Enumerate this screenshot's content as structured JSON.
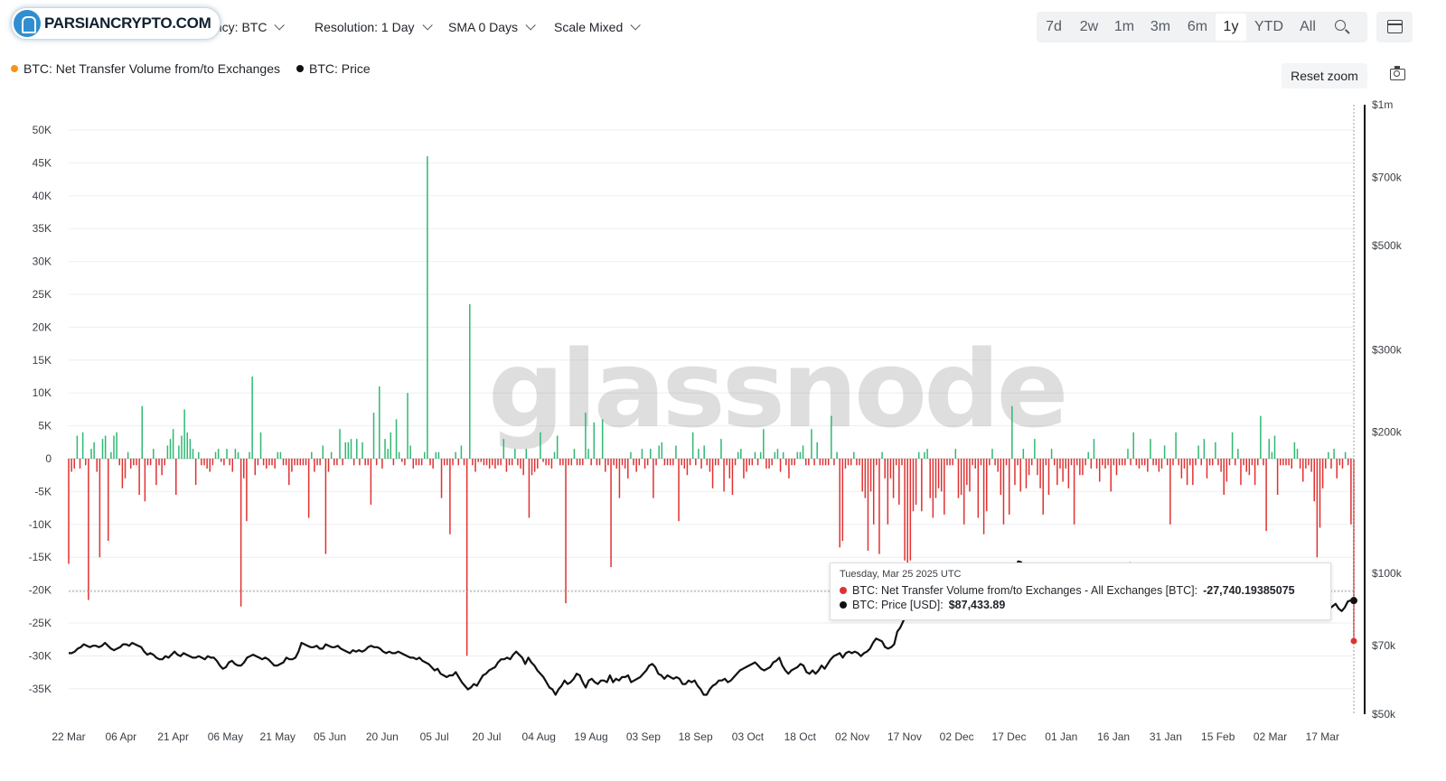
{
  "logo": {
    "text": "PARSIANCRYPTO.COM"
  },
  "toolbar": {
    "currency": "urrency: BTC",
    "resolution": "Resolution: 1 Day",
    "sma": "SMA 0 Days",
    "scale": "Scale Mixed"
  },
  "ranges": [
    "7d",
    "2w",
    "1m",
    "3m",
    "6m",
    "1y",
    "YTD",
    "All"
  ],
  "active_range": "1y",
  "legend": [
    {
      "label": "BTC: Net Transfer Volume from/to Exchanges",
      "color": "#f7931a"
    },
    {
      "label": "BTC: Price",
      "color": "#111111"
    }
  ],
  "reset_zoom": "Reset zoom",
  "watermark": "glassnode",
  "tooltip": {
    "date": "Tuesday, Mar 25 2025 UTC",
    "row1_label": "BTC: Net Transfer Volume from/to Exchanges - All Exchanges [BTC]:",
    "row1_value": "-27,740.19385075",
    "row1_color": "#e03131",
    "row2_label": "BTC: Price [USD]:",
    "row2_value": "$87,433.89",
    "row2_color": "#111111"
  },
  "colors": {
    "positive": "#2fb872",
    "negative": "#e03131",
    "price": "#111111"
  },
  "chart_data": {
    "type": "bar",
    "x_ticks": [
      "22 Mar",
      "06 Apr",
      "21 Apr",
      "06 May",
      "21 May",
      "05 Jun",
      "20 Jun",
      "05 Jul",
      "20 Jul",
      "04 Aug",
      "19 Aug",
      "03 Sep",
      "18 Sep",
      "03 Oct",
      "18 Oct",
      "02 Nov",
      "17 Nov",
      "02 Dec",
      "17 Dec",
      "01 Jan",
      "16 Jan",
      "31 Jan",
      "15 Feb",
      "02 Mar",
      "17 Mar"
    ],
    "y_left_ticks": [
      "50K",
      "45K",
      "40K",
      "35K",
      "30K",
      "25K",
      "20K",
      "15K",
      "10K",
      "5K",
      "0",
      "-5K",
      "-10K",
      "-15K",
      "-20K",
      "-25K",
      "-30K",
      "-35K"
    ],
    "y_left_values": [
      50000,
      45000,
      40000,
      35000,
      30000,
      25000,
      20000,
      15000,
      10000,
      5000,
      0,
      -5000,
      -10000,
      -15000,
      -20000,
      -25000,
      -30000,
      -35000
    ],
    "y_left_range": [
      -38500,
      50000
    ],
    "y_right_ticks": [
      "$1m",
      "$700k",
      "$500k",
      "$300k",
      "$200k",
      "$100k",
      "$70k",
      "$50k"
    ],
    "y_right_values": [
      1000000,
      700000,
      500000,
      300000,
      200000,
      100000,
      70000,
      50000
    ],
    "y_right_scale": "log",
    "y_right_range": [
      50000,
      1000000
    ],
    "grid": true,
    "legend_position": "top-left",
    "series": [
      {
        "name": "BTC: Net Transfer Volume from/to Exchanges",
        "type": "bar",
        "x_range": [
          "22 Mar",
          "25 Mar"
        ],
        "values": [
          -16000,
          -2000,
          -1500,
          3500,
          -1500,
          4000,
          -1000,
          -21500,
          1500,
          2500,
          -2000,
          -15000,
          3000,
          3500,
          -12500,
          1000,
          3500,
          4000,
          -1000,
          -4500,
          -3000,
          1000,
          -1500,
          -1000,
          -1000,
          -5500,
          8000,
          -6500,
          -1000,
          -1000,
          1500,
          -4000,
          -1000,
          -2500,
          -1000,
          2000,
          3000,
          4500,
          -5500,
          2000,
          3500,
          7500,
          4000,
          3000,
          1500,
          -4000,
          1000,
          -1000,
          -1000,
          -1500,
          -2000,
          -1000,
          1000,
          1500,
          -500,
          -1000,
          1500,
          -1000,
          -2000,
          1500,
          1000,
          -22500,
          -3000,
          -9500,
          1000,
          12500,
          -2500,
          -1000,
          4000,
          -1000,
          -1500,
          -1000,
          -1000,
          -1500,
          1000,
          1000,
          -1000,
          -1000,
          -4000,
          -2000,
          -1000,
          -1000,
          -1000,
          -1000,
          -1000,
          -9000,
          1000,
          -2000,
          -1000,
          -1000,
          2000,
          -14500,
          -2000,
          1000,
          -1000,
          -1000,
          4500,
          -1000,
          2500,
          2500,
          3000,
          -1000,
          3000,
          -1000,
          2500,
          -1000,
          -1000,
          -7000,
          7000,
          -1000,
          11000,
          -1500,
          3000,
          1500,
          4000,
          -1000,
          6000,
          1000,
          -500,
          -1000,
          10000,
          2000,
          -1500,
          -1000,
          -1000,
          -1000,
          1000,
          46000,
          -1000,
          -1500,
          1000,
          1000,
          -6000,
          -1000,
          -1000,
          -11500,
          -1000,
          1000,
          -1000,
          2000,
          -1000,
          -30000,
          23500,
          -1000,
          -2000,
          -500,
          -500,
          -1000,
          -1000,
          -1500,
          -1000,
          -1500,
          -1000,
          -1000,
          3000,
          -2000,
          -1000,
          -1000,
          1500,
          -1000,
          -1500,
          -2500,
          1500,
          -9000,
          -2500,
          -2000,
          -1500,
          4000,
          -500,
          -1000,
          -1000,
          -1500,
          1000,
          3500,
          -1000,
          -1000,
          -22000,
          -1000,
          -1000,
          1500,
          -1000,
          -1000,
          -1000,
          7000,
          1500,
          -1000,
          5500,
          -1000,
          -1000,
          6000,
          -2000,
          -1000,
          -16500,
          -1000,
          -1500,
          -6000,
          -1000,
          -1500,
          -3000,
          1000,
          -1000,
          -2000,
          -1000,
          1500,
          -1500,
          -1000,
          1500,
          -6000,
          -1000,
          2000,
          2500,
          -1000,
          -1000,
          -1000,
          -1000,
          2000,
          -9500,
          -1000,
          -1500,
          -2500,
          -1000,
          4000,
          -1000,
          1500,
          -1500,
          2000,
          -1000,
          -2000,
          -4500,
          -1000,
          -1000,
          3000,
          -5000,
          -1000,
          -3000,
          -5500,
          -1000,
          1000,
          1500,
          -3000,
          -2000,
          -1000,
          -1000,
          1000,
          -1000,
          1000,
          4500,
          -1500,
          -1500,
          -1000,
          1000,
          1500,
          -2000,
          1000,
          -1000,
          -3000,
          -1000,
          -1000,
          1000,
          1000,
          2000,
          -1000,
          -1000,
          4500,
          -1000,
          2500,
          -1000,
          -1000,
          -1000,
          -1000,
          6500,
          -1000,
          1000,
          -13500,
          -12500,
          -1500,
          -1000,
          -1000,
          1000,
          -1000,
          -1000,
          -5000,
          -6000,
          -14000,
          -5000,
          -10000,
          -1000,
          -14500,
          1000,
          -3000,
          -10000,
          -3000,
          -6000,
          -1000,
          -7000,
          -1000,
          -15500,
          -16000,
          -15500,
          -8000,
          -7000,
          1000,
          -8000,
          1000,
          1500,
          -6000,
          -9000,
          -6000,
          -4500,
          -5000,
          -8500,
          -1000,
          -1000,
          -1000,
          1500,
          -6000,
          -5500,
          -10000,
          -4000,
          -5000,
          -1000,
          -1500,
          -9000,
          -1000,
          -11500,
          -8000,
          -1000,
          1500,
          -1000,
          -2000,
          -5500,
          -10000,
          -1000,
          -8500,
          8000,
          -4000,
          -1000,
          -5000,
          1500,
          -4500,
          -2500,
          -1000,
          3000,
          -2500,
          -4500,
          -8500,
          -1000,
          -5500,
          1500,
          -1000,
          -4000,
          -1500,
          -3500,
          -1500,
          -4500,
          -1000,
          -10000,
          -1000,
          -2500,
          -2500,
          -1000,
          1000,
          -1500,
          3000,
          -1500,
          -3500,
          -1000,
          -1500,
          -1000,
          -5000,
          -1000,
          -2500,
          -1000,
          -1000,
          -1000,
          1500,
          -1000,
          4000,
          -1000,
          -1500,
          -1000,
          -1000,
          -2000,
          3000,
          -1000,
          -1000,
          -2000,
          -1500,
          2000,
          -1000,
          -10000,
          -1000,
          4000,
          -1000,
          -3000,
          -1500,
          -4000,
          -1000,
          -4000,
          -1000,
          2000,
          -1000,
          3000,
          -3000,
          -1000,
          -1000,
          2500,
          -1000,
          -2000,
          -5500,
          -3500,
          -1000,
          4000,
          -1000,
          1500,
          -4000,
          -1000,
          -2000,
          -2500,
          -1000,
          -4000,
          -1000,
          6500,
          -1000,
          -11000,
          3000,
          1000,
          3500,
          -5500,
          -1000,
          -1000,
          -1000,
          -1000,
          -1500,
          2500,
          1500,
          -1500,
          -3500,
          -1500,
          -1000,
          -2000,
          -6500,
          -15000,
          -10500,
          -4500,
          -1500,
          1000,
          -1500,
          1500,
          -3000,
          -1000,
          -1500,
          1000,
          -1000,
          -10000,
          -27740
        ]
      },
      {
        "name": "BTC: Price",
        "type": "line",
        "x_range": [
          "22 Mar",
          "25 Mar"
        ],
        "values": [
          67500,
          67500,
          68000,
          69000,
          69500,
          70500,
          70000,
          69500,
          70000,
          70000,
          69500,
          70000,
          71000,
          70000,
          69000,
          68500,
          69000,
          69500,
          70500,
          70500,
          70000,
          71000,
          70500,
          70000,
          69500,
          68000,
          67000,
          67500,
          67000,
          66000,
          65500,
          65500,
          66500,
          66000,
          67000,
          68000,
          67000,
          66500,
          67500,
          67000,
          66500,
          66000,
          66000,
          66500,
          66000,
          65500,
          66500,
          66000,
          66000,
          65000,
          63500,
          62500,
          63000,
          64500,
          65000,
          64000,
          63500,
          63500,
          64500,
          66000,
          66500,
          67000,
          66500,
          66000,
          65500,
          66000,
          65500,
          64500,
          63500,
          63500,
          64000,
          64500,
          66000,
          65500,
          65500,
          66000,
          68000,
          71000,
          70500,
          70000,
          69500,
          69500,
          70000,
          69000,
          69000,
          70500,
          70000,
          69500,
          69500,
          70000,
          69000,
          68500,
          68000,
          67500,
          68500,
          68000,
          68500,
          68000,
          68500,
          69500,
          70000,
          69500,
          69500,
          69000,
          68000,
          67500,
          68000,
          67500,
          67500,
          68000,
          67500,
          67000,
          66500,
          66000,
          66000,
          65500,
          66000,
          65000,
          64500,
          64000,
          63000,
          62000,
          62500,
          61000,
          60500,
          60000,
          60500,
          60500,
          61500,
          60000,
          58500,
          57500,
          56500,
          57000,
          58000,
          57500,
          59000,
          60500,
          61000,
          62000,
          62500,
          63000,
          64500,
          65500,
          65500,
          66000,
          65500,
          67000,
          68000,
          67000,
          66000,
          64000,
          66000,
          64500,
          63500,
          62000,
          61000,
          60000,
          58500,
          57000,
          56500,
          55000,
          56500,
          57500,
          59000,
          58000,
          58500,
          59500,
          61000,
          60500,
          58500,
          57000,
          59000,
          59500,
          58500,
          58000,
          59000,
          59000,
          58500,
          60500,
          58500,
          59500,
          59000,
          60000,
          60000,
          60500,
          58500,
          59000,
          59500,
          60000,
          61000,
          62000,
          63500,
          64000,
          63000,
          61000,
          60500,
          59500,
          60500,
          60000,
          59500,
          60000,
          59500,
          58000,
          58000,
          59000,
          58500,
          59000,
          57500,
          56500,
          55000,
          55000,
          56500,
          57500,
          58000,
          59000,
          59000,
          59500,
          58500,
          59000,
          60000,
          61000,
          62000,
          62500,
          63000,
          63500,
          64000,
          64500,
          63500,
          62500,
          62000,
          62500,
          63000,
          64500,
          65000,
          66000,
          63500,
          62000,
          61000,
          62000,
          62500,
          63000,
          64000,
          63500,
          61500,
          61000,
          62000,
          61000,
          62000,
          63500,
          62500,
          64000,
          65500,
          66500,
          67000,
          67500,
          66000,
          67500,
          68000,
          67500,
          68000,
          67500,
          66500,
          67500,
          68000,
          69000,
          71000,
          72500,
          72000,
          71500,
          69500,
          69000,
          69500,
          70500,
          75000,
          76500,
          79000,
          81500,
          87500,
          89000,
          91500,
          90500,
          91000,
          89000,
          90000,
          91500,
          92500,
          94000,
          94500,
          96000,
          97500,
          97000,
          95500,
          96500,
          95000,
          97000,
          98000,
          97500,
          96000,
          97000,
          100000,
          101000,
          100500,
          101000,
          100000,
          98500,
          98000,
          99000,
          100000,
          97000,
          101500,
          104000,
          102500,
          101000,
          106000,
          105500,
          102000,
          99000,
          97500,
          98000,
          95500,
          94000,
          97500,
          98000,
          95000,
          94000,
          94500,
          93500,
          92500,
          95500,
          96000,
          98500,
          99000,
          100000,
          101000,
          98000,
          95000,
          94500,
          93500,
          92500,
          95000,
          97000,
          94000,
          95500,
          96500,
          99500,
          101000,
          104000,
          104500,
          103500,
          104000,
          105000,
          102000,
          104500,
          104000,
          102000,
          101000,
          103000,
          101500,
          98000,
          100000,
          101500,
          102000,
          97000,
          96500,
          98000,
          97500,
          96500,
          96000,
          96000,
          97500,
          98000,
          96500,
          96000,
          95500,
          96000,
          96500,
          97000,
          98000,
          97000,
          95500,
          96000,
          96500,
          97500,
          96000,
          95000,
          96000,
          98000,
          96000,
          95000,
          94000,
          91500,
          88500,
          86500,
          84500,
          84000,
          85000,
          84000,
          86000,
          90000,
          92000,
          90500,
          86000,
          84000,
          85500,
          84500,
          82000,
          81000,
          82500,
          80500,
          80000,
          84000,
          84500,
          82000,
          83000,
          84000,
          82500,
          84000,
          85000,
          86000,
          84000,
          83000,
          84500,
          87000,
          87500,
          87400
        ]
      }
    ]
  }
}
